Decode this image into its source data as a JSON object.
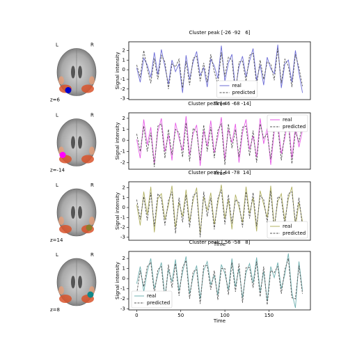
{
  "brains": [
    {
      "left": "L",
      "right": "R",
      "slice": "z=6"
    },
    {
      "left": "L",
      "right": "R",
      "slice": "z=-14"
    },
    {
      "left": "L",
      "right": "R",
      "slice": "z=14"
    },
    {
      "left": "L",
      "right": "R",
      "slice": "z=8"
    }
  ],
  "chart_data": [
    {
      "type": "line",
      "title": "Cluster peak [-26 -92   6]",
      "xlabel": "Time",
      "ylabel": "Signal intensity",
      "x": [
        0,
        4,
        8,
        12,
        16,
        20,
        24,
        28,
        32,
        36,
        40,
        44,
        48,
        52,
        56,
        60,
        64,
        68,
        72,
        76,
        80,
        84,
        88,
        92,
        96,
        100,
        104,
        108,
        112,
        116,
        120,
        124,
        128,
        132,
        136,
        140,
        144,
        148,
        152,
        156,
        160,
        164,
        168,
        172,
        176,
        180,
        184,
        188
      ],
      "xlim": [
        -9,
        197
      ],
      "ylim": [
        -3.1,
        2.9
      ],
      "yticks": [
        -3,
        -2,
        -1,
        0,
        1,
        2
      ],
      "legend": "lower center",
      "series": [
        {
          "name": "real",
          "color": "#6b6bd6",
          "dash": false,
          "values": [
            0.2,
            -1.3,
            1.2,
            0.5,
            -0.8,
            1.8,
            -0.5,
            2.1,
            0.3,
            -1.5,
            1.0,
            -0.2,
            0.6,
            -2.4,
            1.5,
            -1.0,
            0.8,
            1.9,
            -0.6,
            0.2,
            -1.8,
            1.1,
            0.4,
            -0.9,
            2.5,
            -1.2,
            0.7,
            1.6,
            -2.0,
            0.3,
            1.4,
            -0.7,
            0.9,
            2.2,
            -1.1,
            0.5,
            -1.6,
            1.3,
            0.1,
            -0.4,
            2.6,
            -1.9,
            0.6,
            1.0,
            -1.3,
            2.0,
            -0.3,
            -2.4
          ]
        },
        {
          "name": "predicted",
          "color": "#555555",
          "dash": true,
          "values": [
            0.5,
            -0.8,
            2.0,
            0.1,
            -1.4,
            1.2,
            -1.0,
            1.5,
            0.8,
            -2.0,
            0.6,
            0.3,
            1.1,
            -1.9,
            0.9,
            -1.6,
            1.2,
            1.4,
            -1.2,
            0.7,
            -1.3,
            1.6,
            -0.2,
            -1.5,
            1.8,
            -0.7,
            1.3,
            1.0,
            -2.5,
            0.8,
            0.9,
            -1.2,
            1.5,
            1.7,
            -1.6,
            1.0,
            -1.0,
            0.8,
            0.6,
            -1.1,
            2.2,
            -1.4,
            1.1,
            0.4,
            -1.8,
            1.6,
            0.2,
            -1.7
          ]
        }
      ]
    },
    {
      "type": "line",
      "title": "Cluster peak [-46 -68 -14]",
      "xlabel": "Time",
      "ylabel": "Signal intensity",
      "x": [
        0,
        4,
        8,
        12,
        16,
        20,
        24,
        28,
        32,
        36,
        40,
        44,
        48,
        52,
        56,
        60,
        64,
        68,
        72,
        76,
        80,
        84,
        88,
        92,
        96,
        100,
        104,
        108,
        112,
        116,
        120,
        124,
        128,
        132,
        136,
        140,
        144,
        148,
        152,
        156,
        160,
        164,
        168,
        172,
        176,
        180,
        184,
        188
      ],
      "xlim": [
        -9,
        197
      ],
      "ylim": [
        -2.6,
        2.5
      ],
      "yticks": [
        -2,
        -1,
        0,
        1,
        2
      ],
      "legend": "upper right",
      "series": [
        {
          "name": "real",
          "color": "#e659e6",
          "dash": false,
          "values": [
            0.1,
            -1.6,
            1.9,
            -0.4,
            1.2,
            -2.1,
            0.8,
            2.0,
            -1.0,
            0.5,
            -1.8,
            1.6,
            0.2,
            -0.9,
            2.2,
            -1.3,
            0.6,
            1.4,
            -2.3,
            0.9,
            -0.5,
            1.8,
            -1.1,
            0.3,
            2.1,
            -1.7,
            1.0,
            -0.2,
            1.5,
            -2.0,
            0.7,
            1.9,
            -0.8,
            0.4,
            -1.5,
            2.0,
            -0.3,
            1.1,
            -2.2,
            0.8,
            1.7,
            -1.2,
            0.2,
            2.0,
            -1.6,
            1.3,
            -0.6,
            0.9
          ]
        },
        {
          "name": "predicted",
          "color": "#555555",
          "dash": true,
          "values": [
            0.6,
            -1.0,
            1.3,
            -1.0,
            0.7,
            -2.4,
            1.3,
            1.5,
            -1.6,
            1.0,
            -1.3,
            1.0,
            0.7,
            -1.5,
            1.6,
            -1.9,
            1.1,
            0.8,
            -1.8,
            1.4,
            -1.0,
            1.2,
            -1.6,
            0.9,
            1.5,
            -2.2,
            1.5,
            -0.7,
            1.0,
            -1.5,
            1.2,
            1.3,
            -1.4,
            0.9,
            -2.0,
            1.5,
            0.2,
            0.6,
            -1.7,
            1.3,
            1.2,
            -1.8,
            0.7,
            1.5,
            -2.1,
            0.8,
            -0.1,
            1.4
          ]
        }
      ]
    },
    {
      "type": "line",
      "title": "Cluster peak [ 44 -78  14]",
      "xlabel": "Time",
      "ylabel": "Signal intensity",
      "x": [
        0,
        4,
        8,
        12,
        16,
        20,
        24,
        28,
        32,
        36,
        40,
        44,
        48,
        52,
        56,
        60,
        64,
        68,
        72,
        76,
        80,
        84,
        88,
        92,
        96,
        100,
        104,
        108,
        112,
        116,
        120,
        124,
        128,
        132,
        136,
        140,
        144,
        148,
        152,
        156,
        160,
        164,
        168,
        172,
        176,
        180,
        184,
        188
      ],
      "xlim": [
        -9,
        197
      ],
      "ylim": [
        -3.3,
        2.6
      ],
      "yticks": [
        -3,
        -2,
        -1,
        0,
        1,
        2
      ],
      "legend": "lower right",
      "series": [
        {
          "name": "real",
          "color": "#b0b060",
          "dash": false,
          "values": [
            0.3,
            -1.8,
            1.6,
            -0.7,
            2.1,
            -2.5,
            0.9,
            1.4,
            -1.2,
            0.2,
            2.2,
            -2.0,
            0.5,
            -0.9,
            1.8,
            -1.4,
            0.7,
            2.0,
            -2.6,
            1.1,
            -0.3,
            1.5,
            -1.7,
            0.4,
            2.3,
            -1.1,
            0.8,
            -2.2,
            1.3,
            0.0,
            -1.5,
            2.1,
            -0.6,
            1.0,
            -2.4,
            1.7,
            0.3,
            -1.0,
            2.2,
            -1.9,
            0.6,
            1.4,
            -1.3,
            0.9,
            2.1,
            -2.0,
            0.5,
            -1.4
          ]
        },
        {
          "name": "predicted",
          "color": "#555555",
          "dash": true,
          "values": [
            0.8,
            -1.2,
            1.1,
            -1.3,
            1.5,
            -1.9,
            1.4,
            0.9,
            -1.8,
            0.7,
            1.6,
            -2.6,
            1.0,
            -1.5,
            1.3,
            -2.0,
            1.2,
            1.5,
            -3.0,
            1.6,
            -0.9,
            1.0,
            -2.2,
            0.9,
            1.8,
            -1.7,
            1.3,
            -1.6,
            0.8,
            0.5,
            -2.0,
            1.6,
            -1.1,
            1.5,
            -1.9,
            1.2,
            0.8,
            -1.5,
            1.7,
            -2.4,
            1.1,
            0.9,
            -1.8,
            1.4,
            1.6,
            -1.5,
            1.0,
            -1.9
          ]
        }
      ]
    },
    {
      "type": "line",
      "title": "Cluster peak [ 56 -58   8]",
      "xlabel": "Time",
      "ylabel": "Signal intensity",
      "x": [
        0,
        4,
        8,
        12,
        16,
        20,
        24,
        28,
        32,
        36,
        40,
        44,
        48,
        52,
        56,
        60,
        64,
        68,
        72,
        76,
        80,
        84,
        88,
        92,
        96,
        100,
        104,
        108,
        112,
        116,
        120,
        124,
        128,
        132,
        136,
        140,
        144,
        148,
        152,
        156,
        160,
        164,
        168,
        172,
        176,
        180,
        184,
        188
      ],
      "xlim": [
        -9,
        197
      ],
      "ylim": [
        -3.1,
        2.7
      ],
      "yticks": [
        -3,
        -2,
        -1,
        0,
        1,
        2
      ],
      "xticks": [
        0,
        50,
        100,
        150
      ],
      "legend": "lower left",
      "series": [
        {
          "name": "real",
          "color": "#6fb0b0",
          "dash": false,
          "values": [
            -0.5,
            1.2,
            -1.3,
            0.7,
            2.0,
            -1.0,
            0.4,
            1.6,
            -1.8,
            0.9,
            -0.3,
            1.9,
            -1.2,
            0.6,
            2.2,
            -1.5,
            0.2,
            1.3,
            -2.0,
            0.8,
            1.7,
            -0.6,
            0.3,
            -1.6,
            1.4,
            0.5,
            -1.1,
            2.0,
            -0.8,
            1.0,
            -1.9,
            0.6,
            1.5,
            -0.4,
            2.1,
            -1.3,
            0.7,
            -2.2,
            1.2,
            0.1,
            1.6,
            -1.0,
            0.4,
            2.5,
            -1.4,
            -2.9,
            1.7,
            -1.2
          ]
        },
        {
          "name": "predicted",
          "color": "#555555",
          "dash": true,
          "values": [
            -1.5,
            0.8,
            -0.8,
            1.2,
            1.6,
            -1.5,
            0.9,
            1.2,
            -2.3,
            1.4,
            -0.9,
            1.5,
            -1.7,
            1.1,
            1.8,
            -2.0,
            0.7,
            0.9,
            -2.5,
            1.3,
            1.3,
            -1.1,
            0.8,
            -2.1,
            1.0,
            1.0,
            -1.6,
            1.6,
            -1.3,
            1.5,
            -2.4,
            1.1,
            1.1,
            -0.9,
            1.7,
            -1.8,
            1.2,
            -2.6,
            0.8,
            0.6,
            1.2,
            -1.5,
            0.9,
            2.0,
            -1.9,
            -2.0,
            1.3,
            -1.5
          ]
        }
      ]
    }
  ]
}
